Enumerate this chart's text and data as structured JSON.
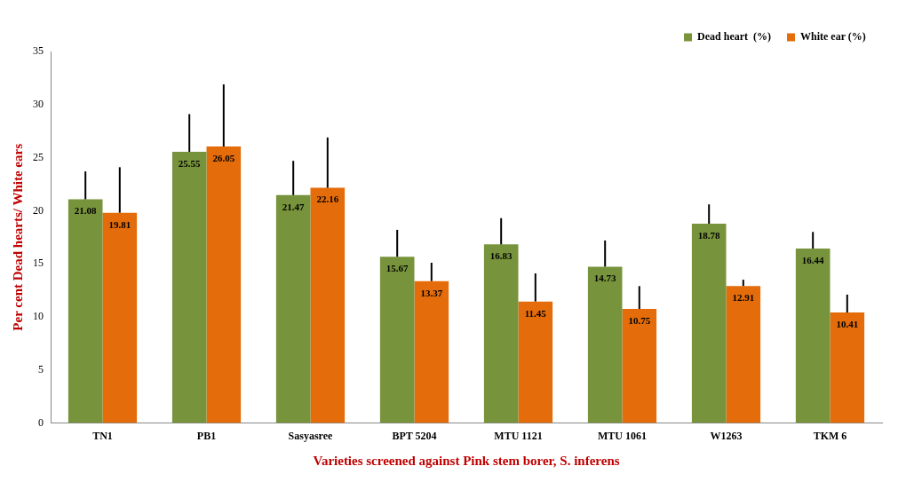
{
  "chart_data": {
    "type": "bar",
    "xlabel": "Varieties screened against Pink stem borer, S. inferens",
    "ylabel": "Per cent Dead hearts/ White ears",
    "categories": [
      "TN1",
      "PB1",
      "Sasyasree",
      "BPT 5204",
      "MTU 1121",
      "MTU 1061",
      "W1263",
      "TKM 6"
    ],
    "series": [
      {
        "name": "Dead heart  (%)",
        "color": "#77933c",
        "values": [
          21.08,
          25.55,
          21.47,
          15.67,
          16.83,
          14.73,
          18.78,
          16.44
        ],
        "errors": [
          [
            21.08,
            23.7
          ],
          [
            25.55,
            29.1
          ],
          [
            21.47,
            24.7
          ],
          [
            15.67,
            18.2
          ],
          [
            16.83,
            19.3
          ],
          [
            14.73,
            17.2
          ],
          [
            18.78,
            20.6
          ],
          [
            16.44,
            18.0
          ]
        ]
      },
      {
        "name": "White ear (%)",
        "color": "#e46c0a",
        "values": [
          19.81,
          26.05,
          22.16,
          13.37,
          11.45,
          10.75,
          12.91,
          10.41
        ],
        "errors": [
          [
            19.81,
            24.1
          ],
          [
            26.05,
            31.9
          ],
          [
            22.16,
            26.9
          ],
          [
            13.37,
            15.1
          ],
          [
            11.45,
            14.1
          ],
          [
            10.75,
            12.9
          ],
          [
            12.91,
            13.5
          ],
          [
            10.41,
            12.1
          ]
        ]
      }
    ],
    "ylim": [
      0,
      35
    ],
    "yticks": [
      0,
      5,
      10,
      15,
      20,
      25,
      30,
      35
    ],
    "grid": false,
    "legend": "top right",
    "data_labels": true
  }
}
